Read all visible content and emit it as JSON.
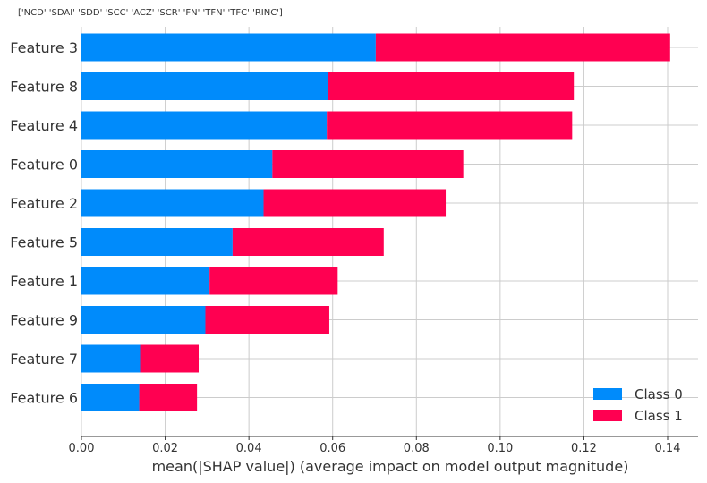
{
  "chart_data": {
    "type": "bar",
    "orientation": "horizontal",
    "stacked": true,
    "title": "['NCD' 'SDAI' 'SDD' 'SCC' 'ACZ' 'SCR' 'FN' 'TFN' 'TFC' 'RINC']",
    "xlabel": "mean(|SHAP value|) (average impact on model output magnitude)",
    "ylabel": "",
    "xlim": [
      0,
      0.147
    ],
    "xticks": [
      "0.00",
      "0.02",
      "0.04",
      "0.06",
      "0.08",
      "0.10",
      "0.12",
      "0.14"
    ],
    "grid": true,
    "legend_position": "bottom-right",
    "categories": [
      "Feature 3",
      "Feature 8",
      "Feature 4",
      "Feature 0",
      "Feature 2",
      "Feature 5",
      "Feature 1",
      "Feature 9",
      "Feature 7",
      "Feature 6"
    ],
    "series": [
      {
        "name": "Class 0",
        "color": "#008bfb",
        "values": [
          0.0703,
          0.0588,
          0.0586,
          0.0456,
          0.0435,
          0.0361,
          0.0306,
          0.0296,
          0.014,
          0.0138
        ]
      },
      {
        "name": "Class 1",
        "color": "#ff0051",
        "values": [
          0.0703,
          0.0588,
          0.0586,
          0.0456,
          0.0435,
          0.0361,
          0.0306,
          0.0296,
          0.014,
          0.0138
        ]
      }
    ]
  }
}
